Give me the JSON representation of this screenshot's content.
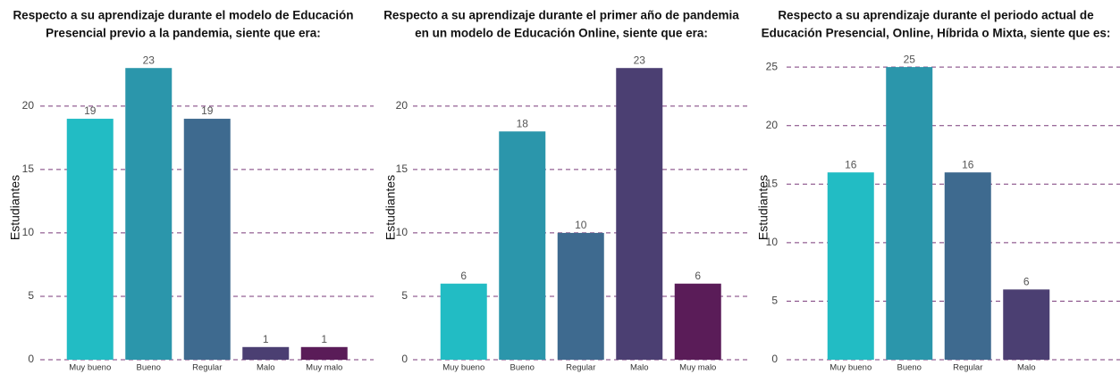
{
  "chart_data": [
    {
      "type": "bar",
      "title": [
        "Respecto a su aprendizaje durante el modelo de Educación",
        "Presencial previo a la pandemia, siente que era:"
      ],
      "ylabel": "Estudiantes",
      "categories": [
        "Muy bueno",
        "Bueno",
        "Regular",
        "Malo",
        "Muy malo"
      ],
      "values": [
        19,
        23,
        19,
        1,
        1
      ],
      "colors": [
        "#22bcc4",
        "#2b96ab",
        "#3e6a8f",
        "#4b3f72",
        "#5a1c58"
      ],
      "ylim": [
        0,
        24
      ],
      "yticks": [
        0,
        5,
        10,
        15,
        20
      ],
      "grid": true
    },
    {
      "type": "bar",
      "title": [
        "Respecto a su aprendizaje durante el primer año de pandemia",
        "en un modelo de Educación Online, siente que era:"
      ],
      "ylabel": "Estudiantes",
      "categories": [
        "Muy bueno",
        "Bueno",
        "Regular",
        "Malo",
        "Muy malo"
      ],
      "values": [
        6,
        18,
        10,
        23,
        6
      ],
      "colors": [
        "#22bcc4",
        "#2b96ab",
        "#3e6a8f",
        "#4b3f72",
        "#5a1c58"
      ],
      "ylim": [
        0,
        24
      ],
      "yticks": [
        0,
        5,
        10,
        15,
        20
      ],
      "grid": true
    },
    {
      "type": "bar",
      "title": [
        "Respecto a su aprendizaje durante el periodo actual de",
        "Educación Presencial, Online, Híbrida o Mixta, siente que es:"
      ],
      "ylabel": "Estudiantes",
      "categories": [
        "Muy bueno",
        "Bueno",
        "Regular",
        "Malo"
      ],
      "values": [
        16,
        25,
        16,
        6
      ],
      "colors": [
        "#22bcc4",
        "#2b96ab",
        "#3e6a8f",
        "#4b3f72"
      ],
      "ylim": [
        0,
        26
      ],
      "yticks": [
        0,
        5,
        10,
        15,
        20,
        25
      ],
      "grid": true
    }
  ]
}
